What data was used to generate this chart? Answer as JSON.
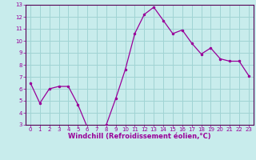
{
  "x": [
    0,
    1,
    2,
    3,
    4,
    5,
    6,
    7,
    8,
    9,
    10,
    11,
    12,
    13,
    14,
    15,
    16,
    17,
    18,
    19,
    20,
    21,
    22,
    23
  ],
  "y": [
    6.5,
    4.8,
    6.0,
    6.2,
    6.2,
    4.7,
    2.8,
    2.7,
    3.0,
    5.2,
    7.6,
    10.6,
    12.2,
    12.8,
    11.7,
    10.6,
    10.9,
    9.8,
    8.9,
    9.4,
    8.5,
    8.3,
    8.3,
    7.1
  ],
  "line_color": "#990099",
  "marker_color": "#990099",
  "bg_color": "#c8ecec",
  "grid_color": "#a0d4d4",
  "axis_color": "#550055",
  "xlabel": "Windchill (Refroidissement éolien,°C)",
  "ylim": [
    3,
    13
  ],
  "xlim_min": -0.5,
  "xlim_max": 23.5,
  "yticks": [
    3,
    4,
    5,
    6,
    7,
    8,
    9,
    10,
    11,
    12,
    13
  ],
  "xticks": [
    0,
    1,
    2,
    3,
    4,
    5,
    6,
    7,
    8,
    9,
    10,
    11,
    12,
    13,
    14,
    15,
    16,
    17,
    18,
    19,
    20,
    21,
    22,
    23
  ],
  "tick_label_color": "#990099",
  "label_color": "#990099",
  "label_fontsize": 6.0,
  "tick_fontsize": 5.0
}
